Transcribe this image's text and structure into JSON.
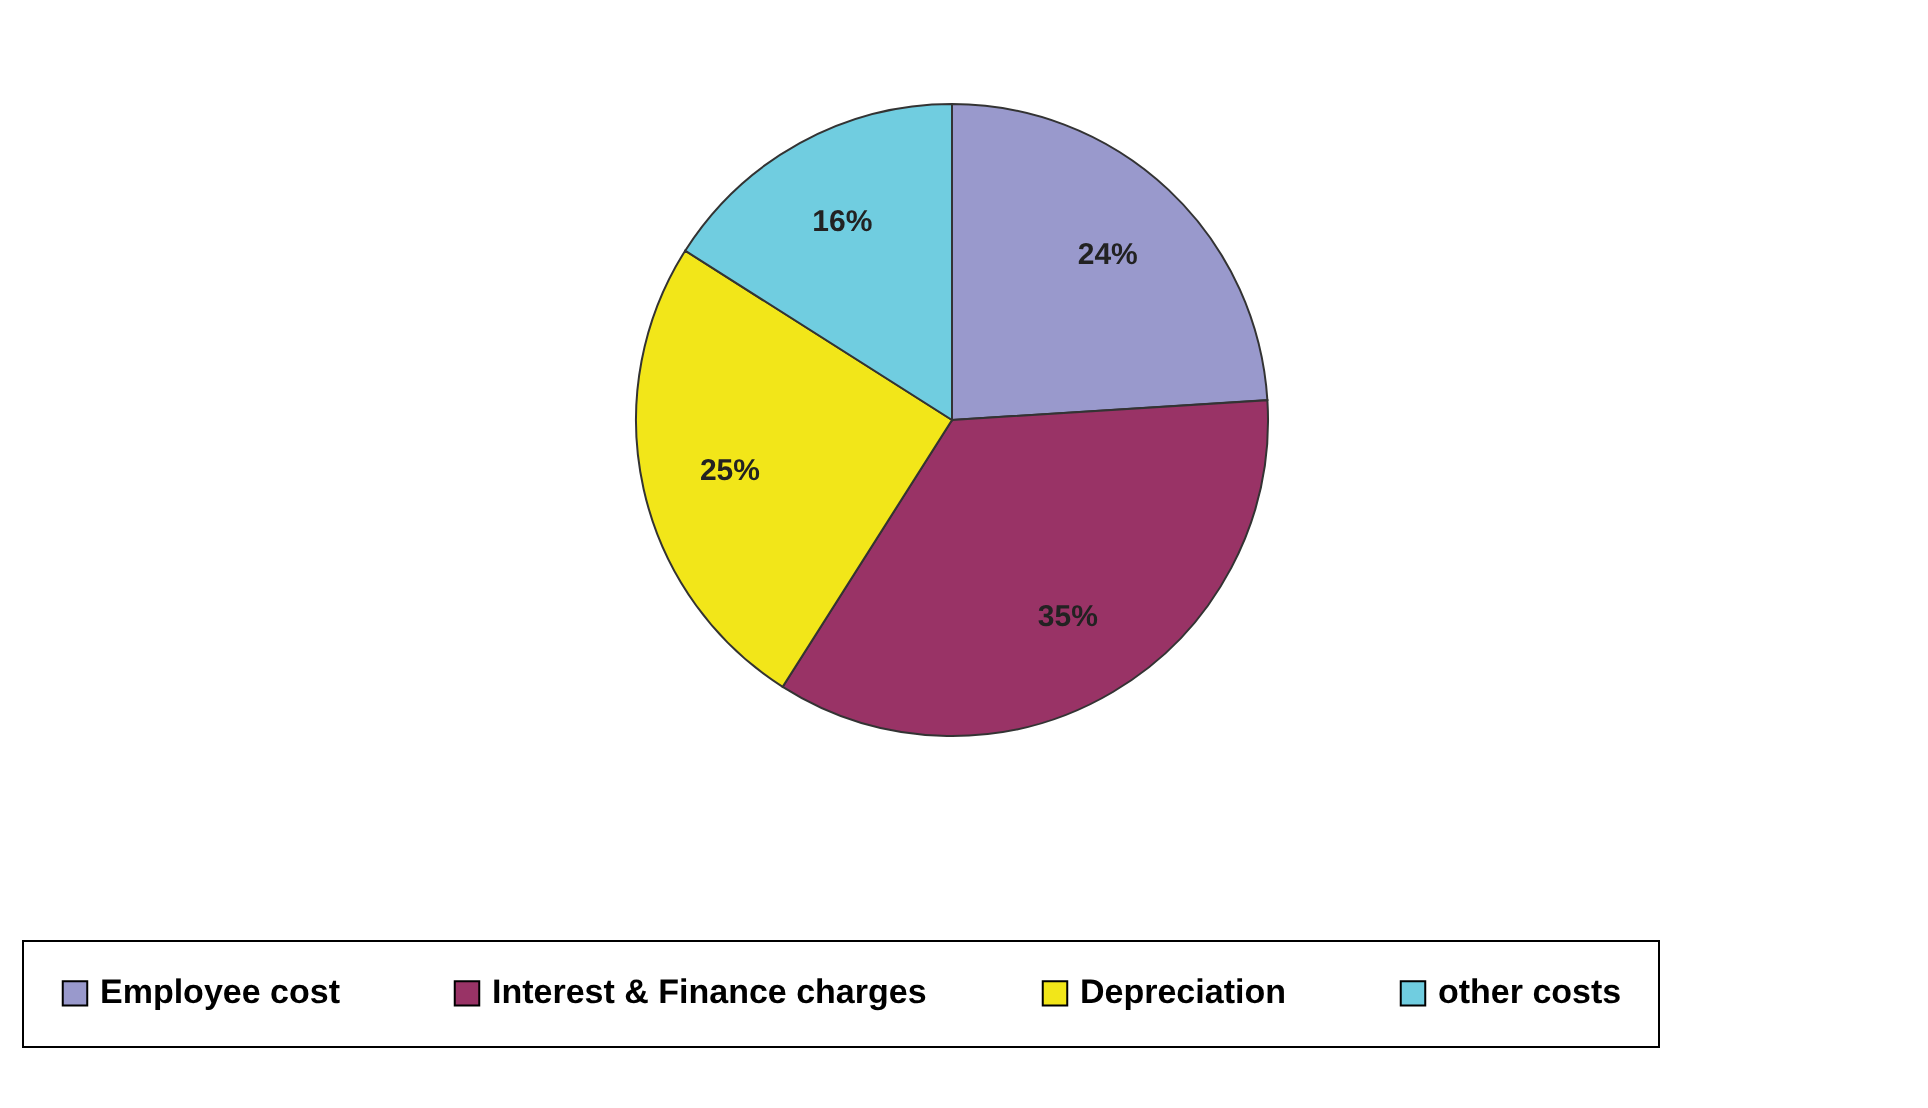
{
  "chart_data": {
    "type": "pie",
    "categories": [
      "Employee cost",
      "Interest & Finance charges",
      "Depreciation",
      "other costs"
    ],
    "values": [
      24,
      35,
      25,
      16
    ],
    "colors": [
      "#9999cc",
      "#993366",
      "#f2e619",
      "#70cde0"
    ],
    "value_labels": [
      "24%",
      "35%",
      "25%",
      "16%"
    ],
    "legend": "bottom"
  }
}
